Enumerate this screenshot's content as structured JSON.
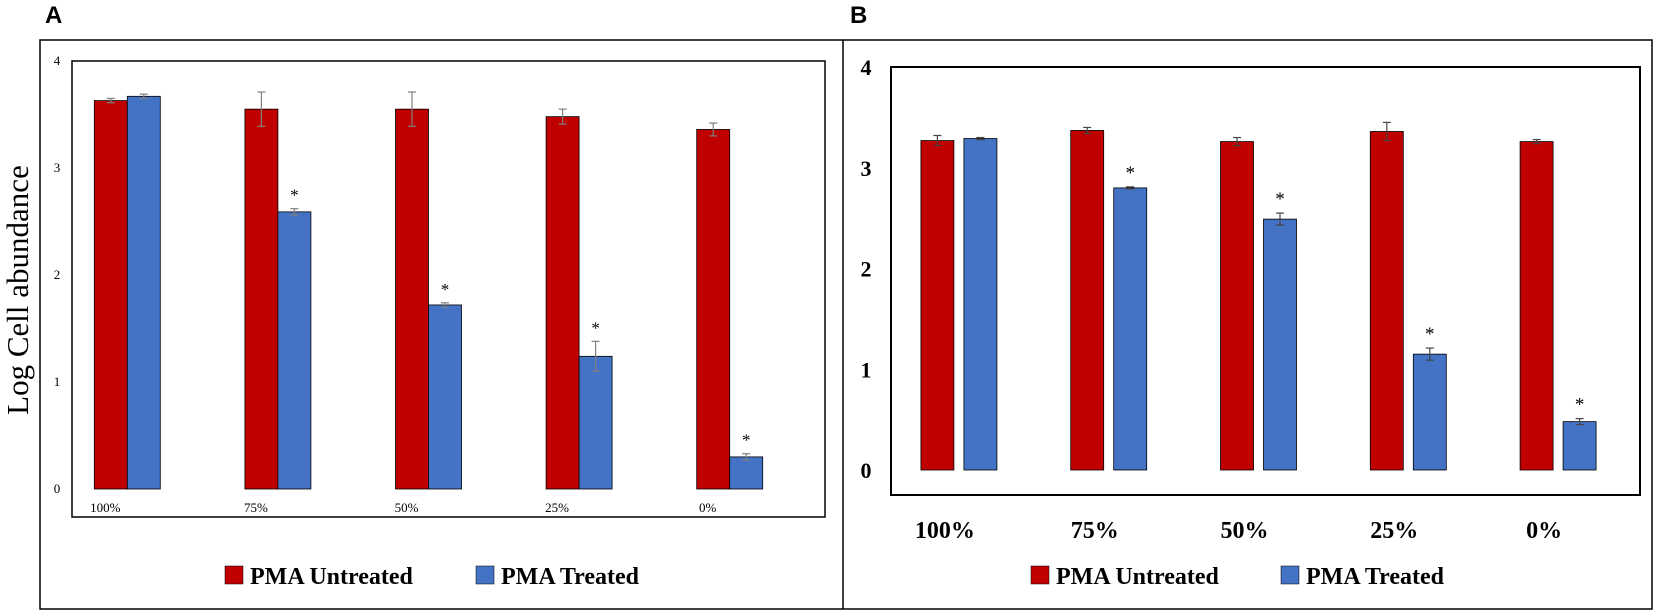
{
  "colors": {
    "untreated": "#C00000",
    "treated": "#4472C4"
  },
  "legend": {
    "untreated": "PMA Untreated",
    "treated": "PMA Treated"
  },
  "chart_data": [
    {
      "panel": "A",
      "type": "bar",
      "ylabel": "Log Cell abundance",
      "ylim": [
        0,
        4
      ],
      "yticks": [
        "0",
        "1",
        "2",
        "3",
        "4"
      ],
      "categories": [
        "100%",
        "75%",
        "50%",
        "25%",
        "0%"
      ],
      "series": [
        {
          "name": "PMA Untreated",
          "values": [
            3.63,
            3.55,
            3.55,
            3.48,
            3.36
          ],
          "errors": [
            0.02,
            0.16,
            0.16,
            0.07,
            0.06
          ]
        },
        {
          "name": "PMA Treated",
          "values": [
            3.67,
            2.59,
            1.72,
            1.24,
            0.3
          ],
          "errors": [
            0.02,
            0.03,
            0.02,
            0.14,
            0.03
          ]
        }
      ],
      "significance": [
        "",
        "*",
        "*",
        "*",
        "*"
      ]
    },
    {
      "panel": "B",
      "type": "bar",
      "ylim": [
        0,
        4
      ],
      "yticks": [
        "0",
        "1",
        "2",
        "3",
        "4"
      ],
      "categories": [
        "100%",
        "75%",
        "50%",
        "25%",
        "0%"
      ],
      "series": [
        {
          "name": "PMA Untreated",
          "values": [
            3.27,
            3.37,
            3.26,
            3.36,
            3.26
          ],
          "errors": [
            0.05,
            0.03,
            0.04,
            0.09,
            0.02
          ]
        },
        {
          "name": "PMA Treated",
          "values": [
            3.29,
            2.8,
            2.49,
            1.15,
            0.48
          ],
          "errors": [
            0.01,
            0.01,
            0.06,
            0.06,
            0.03
          ]
        }
      ],
      "significance": [
        "",
        "*",
        "*",
        "*",
        "*"
      ]
    }
  ]
}
